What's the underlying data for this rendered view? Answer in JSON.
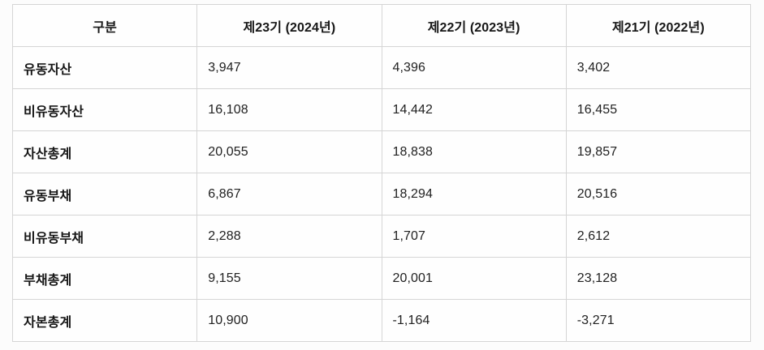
{
  "table": {
    "header": {
      "category": "구분",
      "periods": [
        "제23기 (2024년)",
        "제22기 (2023년)",
        "제21기 (2022년)"
      ]
    },
    "rows": [
      {
        "label": "유동자산",
        "values": [
          "3,947",
          "4,396",
          "3,402"
        ]
      },
      {
        "label": "비유동자산",
        "values": [
          "16,108",
          "14,442",
          "16,455"
        ]
      },
      {
        "label": "자산총계",
        "values": [
          "20,055",
          "18,838",
          "19,857"
        ]
      },
      {
        "label": "유동부채",
        "values": [
          "6,867",
          "18,294",
          "20,516"
        ]
      },
      {
        "label": "비유동부채",
        "values": [
          "2,288",
          "1,707",
          "2,612"
        ]
      },
      {
        "label": "부채총계",
        "values": [
          "9,155",
          "20,001",
          "23,128"
        ]
      },
      {
        "label": "자본총계",
        "values": [
          "10,900",
          "-1,164",
          "-3,271"
        ]
      }
    ]
  },
  "chart_data": {
    "type": "table",
    "title": "",
    "columns": [
      "구분",
      "제23기 (2024년)",
      "제22기 (2023년)",
      "제21기 (2022년)"
    ],
    "rows": [
      {
        "label": "유동자산",
        "values": [
          3947,
          4396,
          3402
        ]
      },
      {
        "label": "비유동자산",
        "values": [
          16108,
          14442,
          16455
        ]
      },
      {
        "label": "자산총계",
        "values": [
          20055,
          18838,
          19857
        ]
      },
      {
        "label": "유동부채",
        "values": [
          6867,
          18294,
          20516
        ]
      },
      {
        "label": "비유동부채",
        "values": [
          2288,
          1707,
          2612
        ]
      },
      {
        "label": "부채총계",
        "values": [
          9155,
          20001,
          23128
        ]
      },
      {
        "label": "자본총계",
        "values": [
          10900,
          -1164,
          -3271
        ]
      }
    ],
    "layout": {
      "grid": true,
      "header_align": "center",
      "cell_align": "left"
    },
    "colors": {
      "border": "#d5d5d5",
      "cell_background": "#fefefe",
      "page_background": "#fcfcfc",
      "text": "#1f1f1f"
    }
  }
}
